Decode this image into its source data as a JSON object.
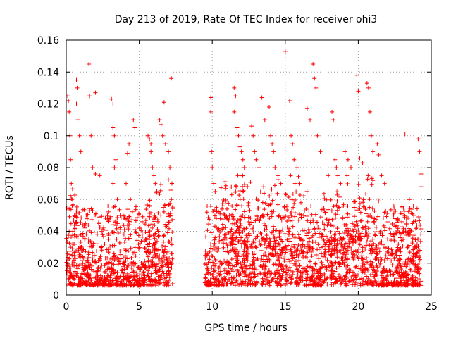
{
  "chart_data": {
    "type": "scatter",
    "title": "Day 213 of 2019, Rate Of TEC Index for receiver ohi3",
    "xlabel": "GPS time / hours",
    "ylabel": "ROTI / TECUs",
    "xlim": [
      0,
      25
    ],
    "ylim": [
      0,
      0.16
    ],
    "x_ticks": [
      0,
      5,
      10,
      15,
      20,
      25
    ],
    "x_tick_labels": [
      "0",
      "5",
      "10",
      "15",
      "20",
      "25"
    ],
    "y_ticks": [
      0,
      0.02,
      0.04,
      0.06,
      0.08,
      0.1,
      0.12,
      0.14,
      0.16
    ],
    "y_tick_labels": [
      "0",
      "0.02",
      "0.04",
      "0.06",
      "0.08",
      "0.1",
      "0.12",
      "0.14",
      "0.16"
    ],
    "grid": true,
    "marker": "+",
    "color": "#ff0000",
    "series": [
      {
        "name": "ROTI",
        "points": [
          [
            0.1,
            0.125
          ],
          [
            0.15,
            0.122
          ],
          [
            0.2,
            0.115
          ],
          [
            0.25,
            0.1
          ],
          [
            0.3,
            0.085
          ],
          [
            0.35,
            0.07
          ],
          [
            0.4,
            0.06
          ],
          [
            0.2,
            0.04
          ],
          [
            0.3,
            0.03
          ],
          [
            0.7,
            0.135
          ],
          [
            0.75,
            0.13
          ],
          [
            0.7,
            0.12
          ],
          [
            0.8,
            0.11
          ],
          [
            0.9,
            0.1
          ],
          [
            1.0,
            0.09
          ],
          [
            1.55,
            0.145
          ],
          [
            1.6,
            0.125
          ],
          [
            1.7,
            0.1
          ],
          [
            1.8,
            0.08
          ],
          [
            2.0,
            0.076
          ],
          [
            2.0,
            0.127
          ],
          [
            2.3,
            0.075
          ],
          [
            3.1,
            0.123
          ],
          [
            3.2,
            0.12
          ],
          [
            3.2,
            0.105
          ],
          [
            3.3,
            0.1
          ],
          [
            3.4,
            0.085
          ],
          [
            3.3,
            0.08
          ],
          [
            3.2,
            0.07
          ],
          [
            3.5,
            0.06
          ],
          [
            4.3,
            0.095
          ],
          [
            4.2,
            0.089
          ],
          [
            4.1,
            0.07
          ],
          [
            4.6,
            0.11
          ],
          [
            4.7,
            0.105
          ],
          [
            4.4,
            0.06
          ],
          [
            5.6,
            0.1
          ],
          [
            5.7,
            0.098
          ],
          [
            5.8,
            0.095
          ],
          [
            5.8,
            0.09
          ],
          [
            5.9,
            0.08
          ],
          [
            6.0,
            0.075
          ],
          [
            6.1,
            0.07
          ],
          [
            6.2,
            0.065
          ],
          [
            6.4,
            0.11
          ],
          [
            6.5,
            0.107
          ],
          [
            6.6,
            0.1
          ],
          [
            6.7,
            0.121
          ],
          [
            6.8,
            0.095
          ],
          [
            7.0,
            0.09
          ],
          [
            7.1,
            0.08
          ],
          [
            7.2,
            0.136
          ],
          [
            7.2,
            0.06
          ],
          [
            9.9,
            0.124
          ],
          [
            9.9,
            0.115
          ],
          [
            9.95,
            0.09
          ],
          [
            10.0,
            0.08
          ],
          [
            10.1,
            0.07
          ],
          [
            10.2,
            0.065
          ],
          [
            10.3,
            0.055
          ],
          [
            11.5,
            0.13
          ],
          [
            11.6,
            0.125
          ],
          [
            11.5,
            0.115
          ],
          [
            11.7,
            0.105
          ],
          [
            11.8,
            0.1
          ],
          [
            11.9,
            0.093
          ],
          [
            12.0,
            0.09
          ],
          [
            12.1,
            0.085
          ],
          [
            12.2,
            0.08
          ],
          [
            12.7,
            0.106
          ],
          [
            12.8,
            0.1
          ],
          [
            12.9,
            0.09
          ],
          [
            13.0,
            0.085
          ],
          [
            13.2,
            0.08
          ],
          [
            13.4,
            0.124
          ],
          [
            13.6,
            0.11
          ],
          [
            13.9,
            0.118
          ],
          [
            14.0,
            0.1
          ],
          [
            14.1,
            0.095
          ],
          [
            14.2,
            0.09
          ],
          [
            14.3,
            0.08
          ],
          [
            14.5,
            0.075
          ],
          [
            14.7,
            0.07
          ],
          [
            15.0,
            0.153
          ],
          [
            15.3,
            0.122
          ],
          [
            15.4,
            0.1
          ],
          [
            15.5,
            0.095
          ],
          [
            15.6,
            0.085
          ],
          [
            15.8,
            0.08
          ],
          [
            16.0,
            0.07
          ],
          [
            16.5,
            0.117
          ],
          [
            16.7,
            0.11
          ],
          [
            16.9,
            0.145
          ],
          [
            17.0,
            0.136
          ],
          [
            17.1,
            0.13
          ],
          [
            17.2,
            0.1
          ],
          [
            17.4,
            0.09
          ],
          [
            18.2,
            0.115
          ],
          [
            18.3,
            0.11
          ],
          [
            18.4,
            0.085
          ],
          [
            18.5,
            0.08
          ],
          [
            18.6,
            0.075
          ],
          [
            18.8,
            0.07
          ],
          [
            19.1,
            0.09
          ],
          [
            19.3,
            0.085
          ],
          [
            19.5,
            0.08
          ],
          [
            19.9,
            0.138
          ],
          [
            20.0,
            0.128
          ],
          [
            20.1,
            0.086
          ],
          [
            20.3,
            0.083
          ],
          [
            20.6,
            0.133
          ],
          [
            20.7,
            0.13
          ],
          [
            20.8,
            0.115
          ],
          [
            20.9,
            0.1
          ],
          [
            21.0,
            0.09
          ],
          [
            21.3,
            0.095
          ],
          [
            21.4,
            0.088
          ],
          [
            21.6,
            0.075
          ],
          [
            21.8,
            0.07
          ],
          [
            23.2,
            0.101
          ],
          [
            23.5,
            0.06
          ],
          [
            23.8,
            0.05
          ],
          [
            24.1,
            0.098
          ],
          [
            24.2,
            0.09
          ],
          [
            24.3,
            0.076
          ],
          [
            24.3,
            0.068
          ]
        ]
      }
    ]
  }
}
